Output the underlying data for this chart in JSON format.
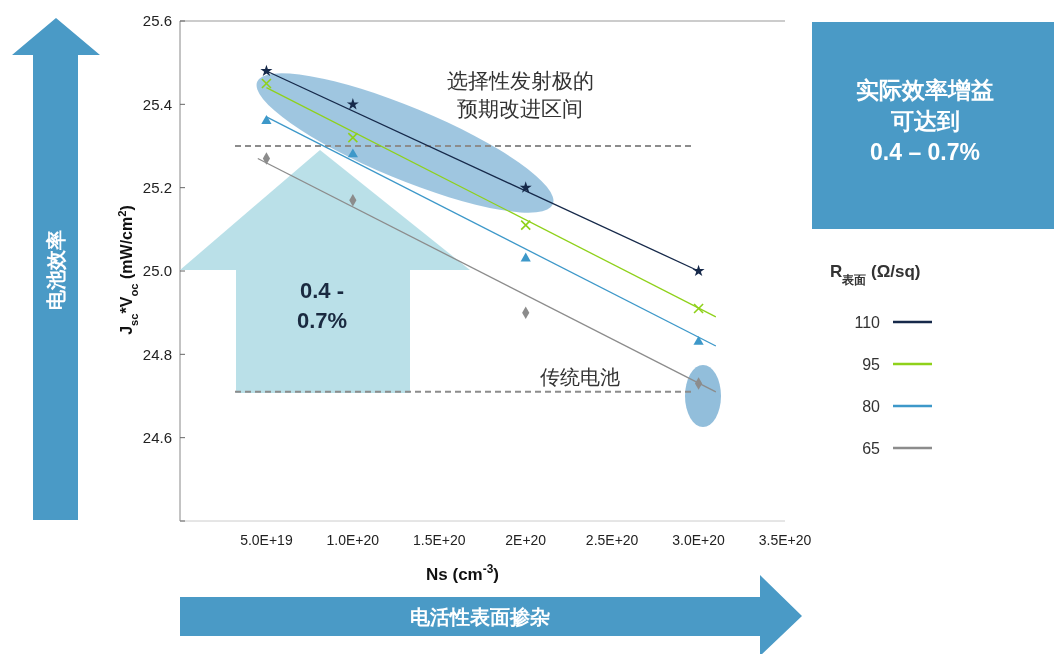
{
  "chart_data": {
    "type": "scatter",
    "xlabel": "Ns (cm$^{-3}$)",
    "ylabel": "J$_{sc}$*V$_{oc}$ (mW/cm$^{2}$)",
    "legend_title": "R$_{表面}$ (Ω/sq)",
    "legend": "right",
    "xlim": [
      0,
      3.5e+20
    ],
    "xticks": [
      {
        "value": 5e+19,
        "label": "5.0E+19"
      },
      {
        "value": 1e+20,
        "label": "1.0E+20"
      },
      {
        "value": 1.5e+20,
        "label": "1.5E+20"
      },
      {
        "value": 2e+20,
        "label": "2E+20"
      },
      {
        "value": 2.5e+20,
        "label": "2.5E+20"
      },
      {
        "value": 3e+20,
        "label": "3.0E+20"
      },
      {
        "value": 3.5e+20,
        "label": "3.5E+20"
      }
    ],
    "ylim": [
      24.4,
      25.6
    ],
    "yticks": [
      {
        "value": 24.4,
        "label": null
      },
      {
        "value": 24.6,
        "label": "24.6"
      },
      {
        "value": 24.8,
        "label": "24.8"
      },
      {
        "value": 25.0,
        "label": "25.0"
      },
      {
        "value": 25.2,
        "label": "25.2"
      },
      {
        "value": 25.4,
        "label": "25.4"
      },
      {
        "value": 25.6,
        "label": "25.6"
      }
    ],
    "series": [
      {
        "type": "line",
        "name": "110",
        "color": "#16294a",
        "x": [
          5e+19,
          3e+20
        ],
        "values": [
          25.48,
          25.0
        ]
      },
      {
        "type": "line",
        "name": "95",
        "color": "#8fd11a",
        "x": [
          5e+19,
          3.1e+20
        ],
        "values": [
          25.44,
          24.89
        ]
      },
      {
        "type": "line",
        "name": "80",
        "color": "#3d98c9",
        "x": [
          5e+19,
          3.1e+20
        ],
        "values": [
          25.37,
          24.82
        ]
      },
      {
        "type": "line",
        "name": "65",
        "color": "#8c8c8c",
        "x": [
          4.5e+19,
          3.1e+20
        ],
        "values": [
          25.27,
          24.71
        ]
      },
      {
        "marker": "star",
        "color": "#16294a",
        "x": [
          5e+19,
          1e+20,
          2e+20,
          3e+20
        ],
        "values": [
          25.48,
          25.4,
          25.2,
          25.0
        ]
      },
      {
        "marker": "cross",
        "color": "#8fd11a",
        "x": [
          5e+19,
          1e+20,
          2e+20,
          3e+20
        ],
        "values": [
          25.45,
          25.32,
          25.11,
          24.91
        ]
      },
      {
        "marker": "triangle",
        "color": "#3d98c9",
        "x": [
          5e+19,
          1e+20,
          2e+20,
          3e+20
        ],
        "values": [
          25.36,
          25.28,
          25.03,
          24.83
        ]
      },
      {
        "marker": "diamond",
        "color": "#8c8c8c",
        "x": [
          5e+19,
          1e+20,
          2e+20,
          3e+20
        ],
        "values": [
          25.27,
          25.17,
          24.9,
          24.73
        ]
      }
    ],
    "ref_lines": [
      {
        "axis": "y",
        "value": 25.3,
        "color": "#8c8c8c",
        "line_style": "dashed"
      },
      {
        "axis": "y",
        "value": 24.71,
        "label": "传统电池",
        "color": "#8c8c8c",
        "line_style": "dashed"
      }
    ],
    "annotations": [
      "选择性发射极的预期改进区间",
      "0.4 - 0.7%",
      "电池效率",
      "电活性表面掺杂",
      "实际效率增益可达到0.4 – 0.7%"
    ]
  }
}
